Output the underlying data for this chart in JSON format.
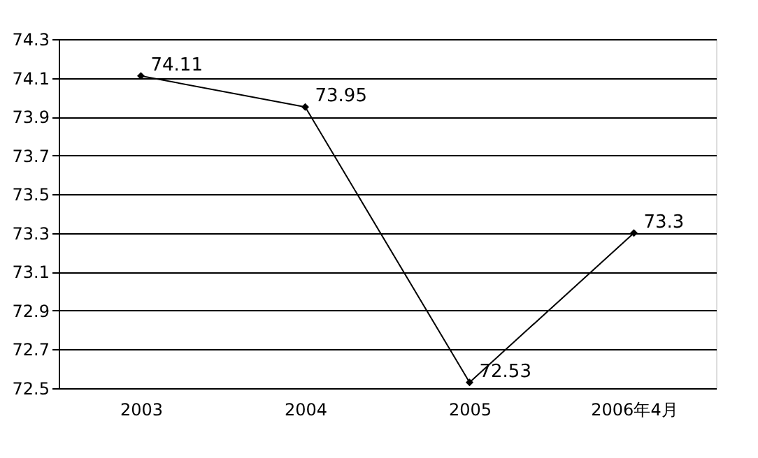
{
  "chart_data": {
    "type": "line",
    "categories": [
      "2003",
      "2004",
      "2005",
      "2006年4月"
    ],
    "series": [
      {
        "color": "#000000",
        "values": [
          74.11,
          73.95,
          72.53,
          73.3
        ]
      }
    ],
    "ylim": [
      72.5,
      74.3
    ],
    "yticks": [
      72.5,
      72.7,
      72.9,
      73.1,
      73.3,
      73.5,
      73.7,
      73.9,
      74.1,
      74.3
    ],
    "grid": "y",
    "marker": "diamond",
    "line_style": "solid",
    "data_labels": true,
    "legend": false
  }
}
